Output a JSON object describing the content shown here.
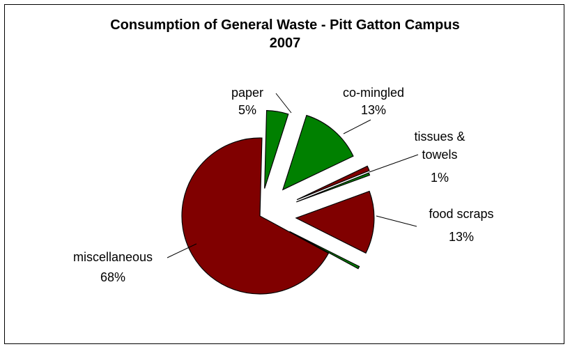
{
  "chart_data": {
    "type": "pie",
    "title_line1": "Consumption of General Waste - Pitt Gatton Campus",
    "title_line2": "2007",
    "slices": [
      {
        "label_line1": "paper",
        "label_line2": "",
        "pct": "5%",
        "value": 4.5,
        "color": "#008000"
      },
      {
        "label_line1": "co-mingled",
        "label_line2": "",
        "pct": "13%",
        "value": 13.0,
        "color": "#008000"
      },
      {
        "label_line1": "tissues &",
        "label_line2": "towels",
        "pct": "1%",
        "value": 1.0,
        "color": "#800000"
      },
      {
        "label_line1": "",
        "label_line2": "",
        "pct": "",
        "value": 0.5,
        "color": "#008000"
      },
      {
        "label_line1": "food scraps",
        "label_line2": "",
        "pct": "13%",
        "value": 13.0,
        "color": "#800000"
      },
      {
        "label_line1": "",
        "label_line2": "",
        "pct": "",
        "value": 0.5,
        "color": "#008000"
      },
      {
        "label_line1": "miscellaneous",
        "label_line2": "",
        "pct": "68%",
        "value": 67.5,
        "color": "#800000"
      }
    ]
  }
}
